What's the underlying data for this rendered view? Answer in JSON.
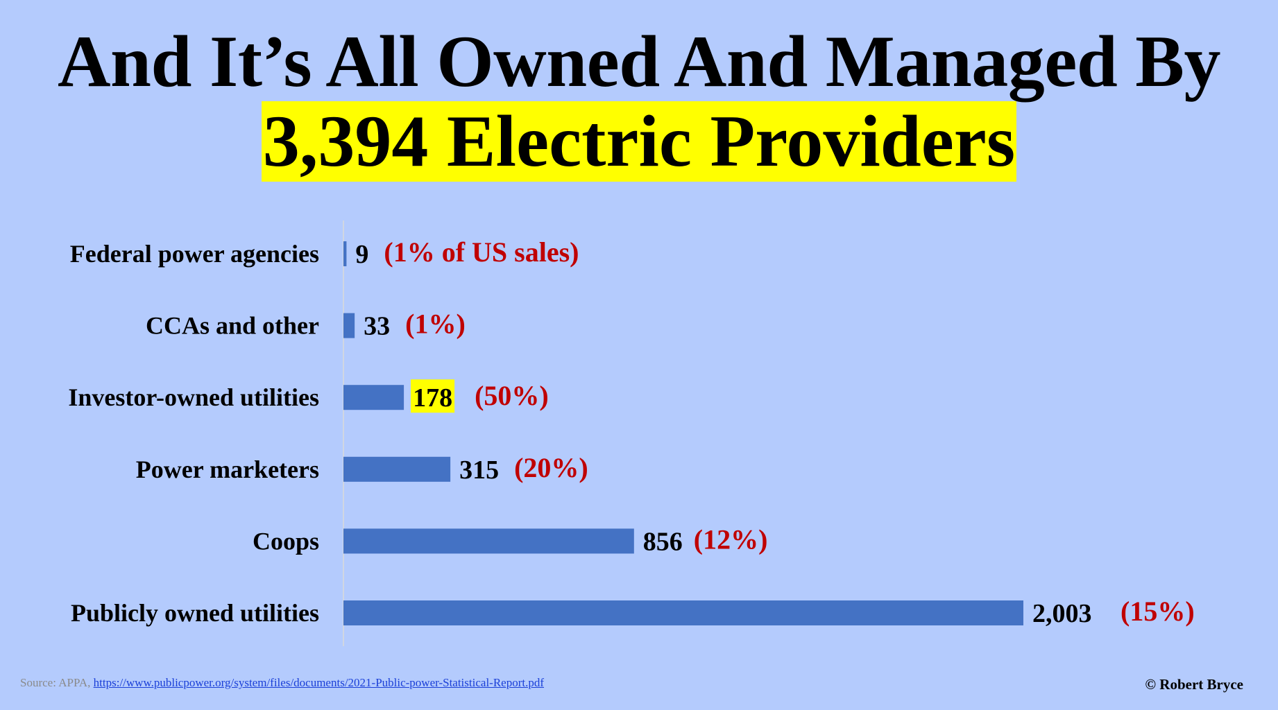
{
  "title": {
    "line1": "And It’s All Owned And Managed By",
    "line2": "3,394 Electric Providers",
    "highlight_color": "#ffff00"
  },
  "chart_data": {
    "type": "bar",
    "orientation": "horizontal",
    "categories": [
      "Federal power agencies",
      "CCAs and other",
      "Investor-owned utilities",
      "Power marketers",
      "Coops",
      "Publicly owned utilities"
    ],
    "values": [
      9,
      33,
      178,
      315,
      856,
      2003
    ],
    "value_labels": [
      "9",
      "33",
      "178",
      "315",
      "856",
      "2,003"
    ],
    "annotations": [
      "(1% of US sales)",
      "(1%)",
      "(50%)",
      "(20%)",
      "(12%)",
      "(15%)"
    ],
    "highlighted_value_index": 2,
    "bar_color": "#4472c4",
    "annotation_color": "#c00000",
    "xlim": [
      0,
      2003
    ],
    "grid": false
  },
  "footer": {
    "source_prefix": "Source: APPA, ",
    "source_link": "https://www.publicpower.org/system/files/documents/2021-Public-power-Statistical-Report.pdf",
    "copyright": "© Robert Bryce"
  }
}
